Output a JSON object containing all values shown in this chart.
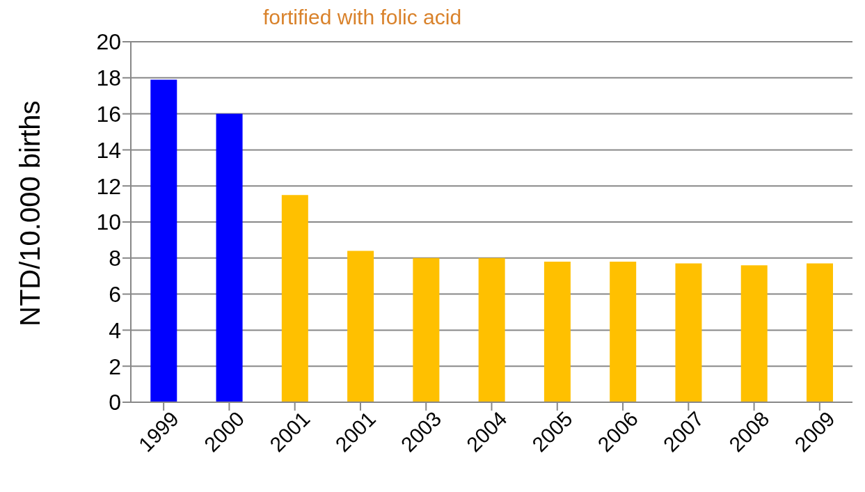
{
  "chart_data": {
    "type": "bar",
    "ylabel": "NTD/10.000 births",
    "annotations": [
      "fortified with folic acid"
    ],
    "categories": [
      "1999",
      "2000",
      "2001",
      "2001",
      "2003",
      "2004",
      "2005",
      "2006",
      "2007",
      "2008",
      "2009"
    ],
    "values": [
      17.9,
      16.0,
      11.5,
      8.4,
      8.0,
      8.0,
      7.8,
      7.8,
      7.7,
      7.6,
      7.7
    ],
    "colors": [
      "#0000ff",
      "#0000ff",
      "#ffc000",
      "#ffc000",
      "#ffc000",
      "#ffc000",
      "#ffc000",
      "#ffc000",
      "#ffc000",
      "#ffc000",
      "#ffc000"
    ],
    "ylim": [
      0,
      20
    ],
    "yticks": [
      0,
      2,
      4,
      6,
      8,
      10,
      12,
      14,
      16,
      18,
      20
    ],
    "grid": "y"
  }
}
